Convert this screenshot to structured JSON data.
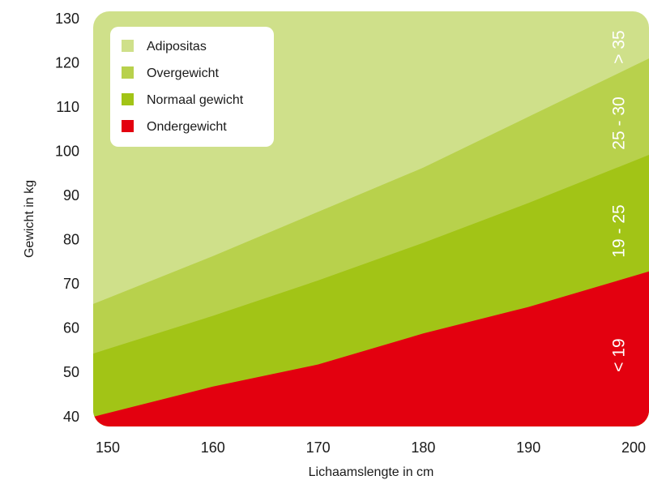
{
  "chart_data": {
    "type": "area",
    "xlabel": "Lichaamslengte in cm",
    "ylabel": "Gewicht in kg",
    "xlim": [
      150,
      200
    ],
    "ylim": [
      40,
      130
    ],
    "x_ticks": [
      150,
      160,
      170,
      180,
      190,
      200
    ],
    "y_ticks": [
      40,
      50,
      60,
      70,
      80,
      90,
      100,
      110,
      120,
      130
    ],
    "x_tick_labels": [
      "150",
      "160",
      "170",
      "180",
      "190",
      "200"
    ],
    "y_tick_labels": [
      "40",
      "50",
      "60",
      "70",
      "80",
      "90",
      "100",
      "110",
      "120",
      "130"
    ],
    "bands": [
      {
        "name": "Adipositas",
        "bmi_label": "> 35",
        "color": "#cfe08a",
        "lower_bmi": 35
      },
      {
        "name": "Overgewicht",
        "bmi_label": "25 - 30",
        "color": "#b8d14c",
        "lower_bmi": 25
      },
      {
        "name": "Normaal gewicht",
        "bmi_label": "19 - 25",
        "color": "#a2c416",
        "lower_bmi": 19
      },
      {
        "name": "Ondergewicht",
        "bmi_label": "< 19",
        "color": "#e3000f",
        "lower_bmi": null
      }
    ],
    "boundaries": [
      {
        "bmi": 19,
        "x": [
          150,
          160,
          170,
          180,
          190,
          200
        ],
        "y": [
          41,
          47,
          52,
          59,
          65,
          72
        ]
      },
      {
        "bmi": 25,
        "x": [
          150,
          160,
          170,
          180,
          190,
          200
        ],
        "y": [
          55.5,
          63,
          71,
          79.5,
          88.5,
          98
        ]
      },
      {
        "bmi": 30,
        "x": [
          150,
          160,
          170,
          180,
          190,
          200
        ],
        "y": [
          67,
          76.5,
          86.5,
          96.5,
          108,
          119.5
        ]
      }
    ],
    "legend_position": "top-left"
  }
}
